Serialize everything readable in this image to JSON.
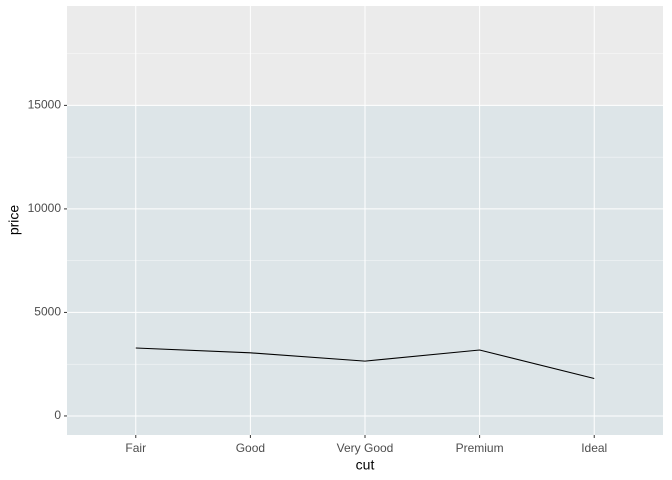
{
  "chart_data": {
    "type": "line",
    "x_label": "cut",
    "y_label": "price",
    "categories": [
      "Fair",
      "Good",
      "Very Good",
      "Premium",
      "Ideal"
    ],
    "values": [
      3282,
      3050,
      2648,
      3185,
      1810
    ],
    "color": "#000000",
    "highlight": {
      "ymax": 15000,
      "color": "#dde5e8"
    },
    "ylim": [
      -920,
      19800
    ],
    "yticks": [
      0,
      5000,
      10000,
      15000
    ],
    "grid": true
  }
}
